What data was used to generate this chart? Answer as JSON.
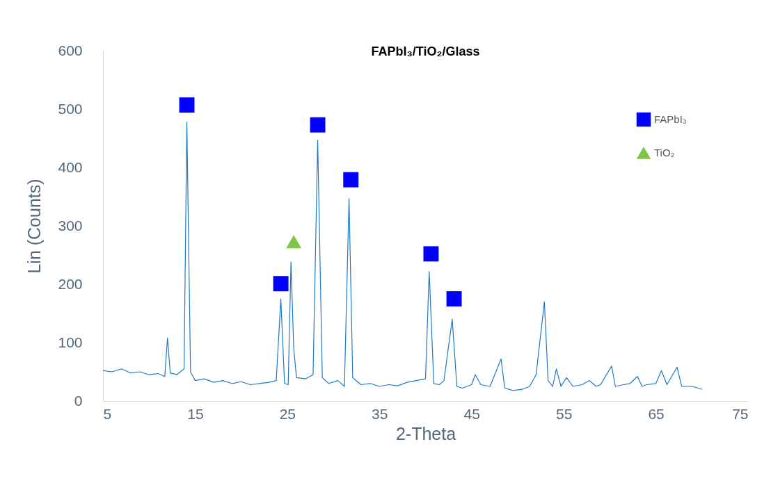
{
  "chart_data": {
    "type": "line",
    "title": "FAPbI₃/TiO₂/Glass",
    "xlabel": "2-Theta",
    "ylabel": "Lin (Counts)",
    "xlim": [
      5,
      75
    ],
    "xticks": [
      5,
      15,
      25,
      35,
      45,
      55,
      65,
      75
    ],
    "ylim": [
      0,
      600
    ],
    "yticks": [
      0,
      100,
      200,
      300,
      400,
      500,
      600
    ],
    "grid": false,
    "legend": "top right",
    "series": [
      {
        "color": "#1f78c8",
        "x": [
          5,
          6,
          7,
          8,
          9,
          10,
          11,
          11.7,
          12,
          12.3,
          13,
          13.8,
          14.1,
          14.5,
          15,
          16,
          17,
          18,
          19,
          20,
          21,
          22,
          23,
          23.8,
          24.3,
          24.7,
          25.1,
          25.4,
          25.7,
          26,
          27,
          27.8,
          28.3,
          28.8,
          29.5,
          30.5,
          31.2,
          31.7,
          32.1,
          33,
          34,
          35,
          36,
          37,
          38,
          39,
          40,
          40.4,
          40.9,
          41.5,
          42,
          42.9,
          43.4,
          44,
          45,
          45.4,
          46,
          47,
          48.2,
          48.6,
          49.5,
          50.5,
          51.3,
          52,
          52.9,
          53.3,
          53.8,
          54.2,
          54.7,
          55.3,
          56,
          57,
          57.8,
          58.5,
          59,
          60.2,
          60.6,
          61.5,
          62.2,
          63,
          63.5,
          64,
          65,
          65.6,
          66.2,
          67.3,
          67.8,
          69,
          70
        ],
        "values": [
          52,
          50,
          55,
          48,
          50,
          45,
          47,
          42,
          108,
          48,
          45,
          55,
          478,
          50,
          35,
          38,
          32,
          35,
          30,
          33,
          28,
          30,
          32,
          35,
          175,
          30,
          28,
          238,
          90,
          40,
          38,
          45,
          447,
          40,
          30,
          35,
          25,
          347,
          40,
          28,
          30,
          25,
          28,
          26,
          32,
          35,
          38,
          222,
          30,
          28,
          35,
          140,
          25,
          22,
          28,
          45,
          28,
          25,
          72,
          22,
          18,
          20,
          25,
          45,
          170,
          35,
          25,
          55,
          25,
          40,
          25,
          28,
          35,
          25,
          28,
          60,
          25,
          28,
          30,
          42,
          25,
          28,
          30,
          52,
          28,
          58,
          25,
          25,
          20
        ]
      },
      {
        "type": "scatter",
        "name": "FAPbI₃",
        "color": "#0000ff",
        "marker": "square",
        "x": [
          14.1,
          24.3,
          28.3,
          31.9,
          40.6,
          43.1
        ],
        "values": [
          507,
          201,
          473,
          379,
          252,
          175
        ]
      },
      {
        "type": "scatter",
        "name": "TiO₂",
        "color": "#7ec34a",
        "marker": "triangle",
        "x": [
          25.7
        ],
        "values": [
          273
        ]
      }
    ]
  }
}
